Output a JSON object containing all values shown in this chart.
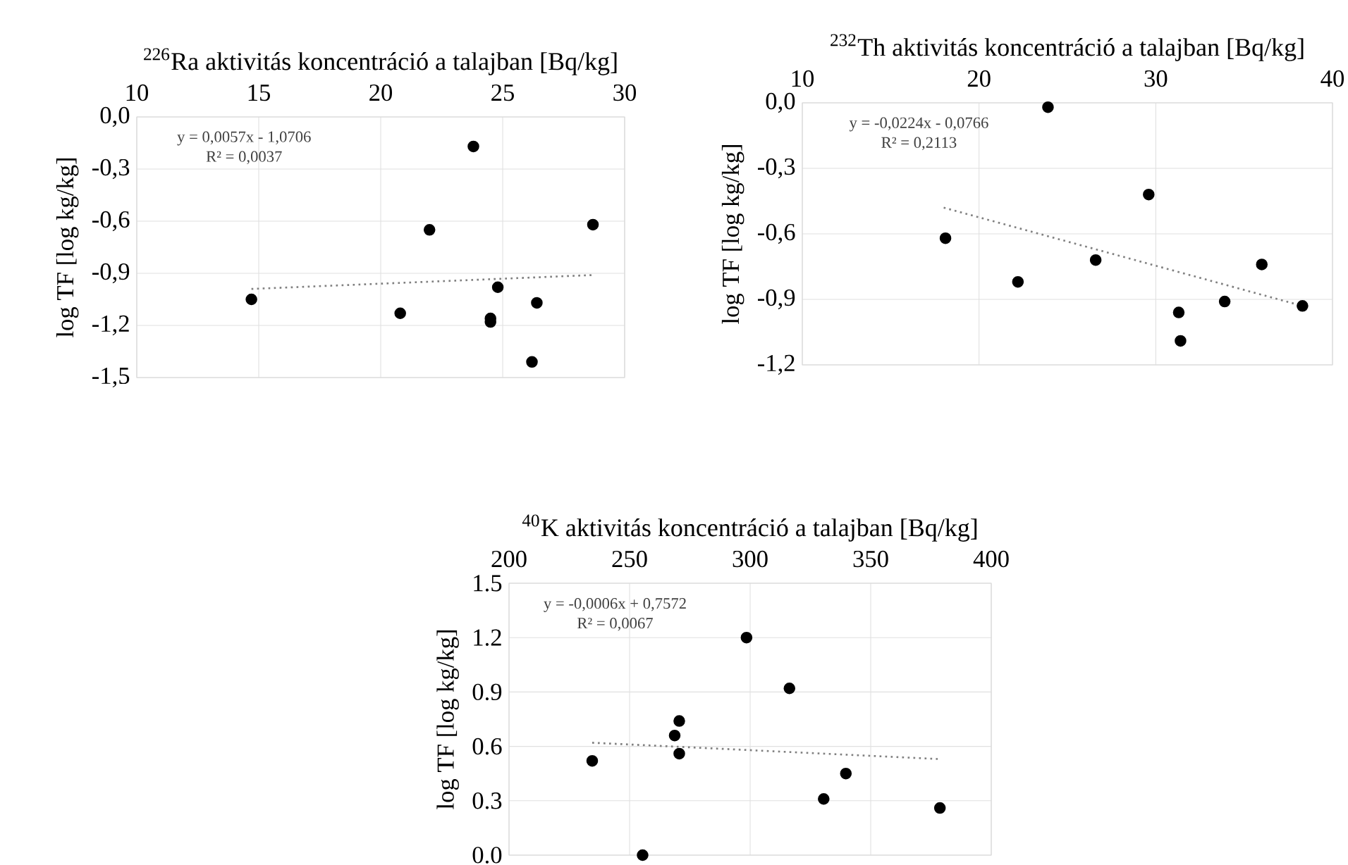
{
  "chart_data": [
    {
      "type": "scatter",
      "xlabel": "$^{226}$Ra aktivitás koncentráció a talajban [Bq/kg]",
      "ylabel": "log TF [log kg/kg]",
      "xlim": [
        10,
        30
      ],
      "xticks": [
        10,
        15,
        20,
        25,
        30
      ],
      "ylim": [
        -1.5,
        0
      ],
      "yticks": [
        {
          "value": -1.5,
          "label": "-1,5"
        },
        {
          "value": -1.2,
          "label": "-1,2"
        },
        {
          "value": -0.9,
          "label": "-0,9"
        },
        {
          "value": -0.6,
          "label": "-0,6"
        },
        {
          "value": -0.3,
          "label": "-0,3"
        },
        {
          "value": 0,
          "label": "0,0"
        }
      ],
      "grid": true,
      "annotations": [
        "y = 0,0057x - 1,0706",
        "R² = 0,0037"
      ],
      "series": [
        {
          "type": "scatter",
          "marker": "circle",
          "color": "#000000",
          "x": [
            14.7,
            23.8,
            22.0,
            28.7,
            24.8,
            20.8,
            24.5,
            24.5,
            26.4,
            26.2
          ],
          "values": [
            -1.05,
            -0.17,
            -0.65,
            -0.62,
            -0.98,
            -1.13,
            -1.16,
            -1.18,
            -1.07,
            -1.41
          ]
        },
        {
          "type": "line",
          "marker": "none",
          "line_style": "dotted",
          "color": "#808080",
          "x": [
            14.7,
            28.7
          ],
          "values": [
            -0.99,
            -0.91
          ]
        }
      ]
    },
    {
      "type": "scatter",
      "xlabel": "$^{232}$Th aktivitás koncentráció a talajban [Bq/kg]",
      "ylabel": "log TF [log kg/kg]",
      "xlim": [
        10,
        40
      ],
      "xticks": [
        10,
        20,
        30,
        40
      ],
      "ylim": [
        -1.2,
        0
      ],
      "yticks": [
        {
          "value": -1.2,
          "label": "-1,2"
        },
        {
          "value": -0.9,
          "label": "-0,9"
        },
        {
          "value": -0.6,
          "label": "-0,6"
        },
        {
          "value": -0.3,
          "label": "-0,3"
        },
        {
          "value": 0,
          "label": "0,0"
        }
      ],
      "grid": true,
      "annotations": [
        "y = -0,0224x - 0,0766",
        "R² = 0,2113"
      ],
      "series": [
        {
          "type": "scatter",
          "marker": "circle",
          "color": "#000000",
          "x": [
            23.9,
            29.6,
            18.1,
            22.2,
            26.6,
            36.0,
            33.9,
            38.3,
            31.3,
            31.4
          ],
          "values": [
            -0.02,
            -0.42,
            -0.62,
            -0.82,
            -0.72,
            -0.74,
            -0.91,
            -0.93,
            -0.96,
            -1.09
          ]
        },
        {
          "type": "line",
          "marker": "none",
          "line_style": "dotted",
          "color": "#808080",
          "x": [
            18.0,
            38.3
          ],
          "values": [
            -0.48,
            -0.93
          ]
        }
      ]
    },
    {
      "type": "scatter",
      "xlabel": "$^{40}$K aktivitás koncentráció a talajban [Bq/kg]",
      "ylabel": "log TF [log kg/kg]",
      "xlim": [
        200,
        400
      ],
      "xticks": [
        200,
        250,
        300,
        350,
        400
      ],
      "ylim": [
        0,
        1.5
      ],
      "yticks": [
        {
          "value": 0,
          "label": "0.0"
        },
        {
          "value": 0.3,
          "label": "0.3"
        },
        {
          "value": 0.6,
          "label": "0.6"
        },
        {
          "value": 0.9,
          "label": "0.9"
        },
        {
          "value": 1.2,
          "label": "1.2"
        },
        {
          "value": 1.5,
          "label": "1.5"
        }
      ],
      "grid": true,
      "annotations": [
        "y = -0,0006x + 0,7572",
        "R² = 0,0067"
      ],
      "series": [
        {
          "type": "scatter",
          "marker": "circle",
          "color": "#000000",
          "x": [
            234.5,
            255.4,
            268.7,
            270.6,
            270.6,
            298.5,
            316.3,
            330.5,
            339.7,
            378.7
          ],
          "values": [
            0.52,
            0.0,
            0.66,
            0.74,
            0.56,
            1.2,
            0.92,
            0.31,
            0.45,
            0.26
          ]
        },
        {
          "type": "line",
          "marker": "none",
          "line_style": "dotted",
          "color": "#808080",
          "x": [
            234.5,
            378.7
          ],
          "values": [
            0.62,
            0.53
          ]
        }
      ]
    }
  ]
}
